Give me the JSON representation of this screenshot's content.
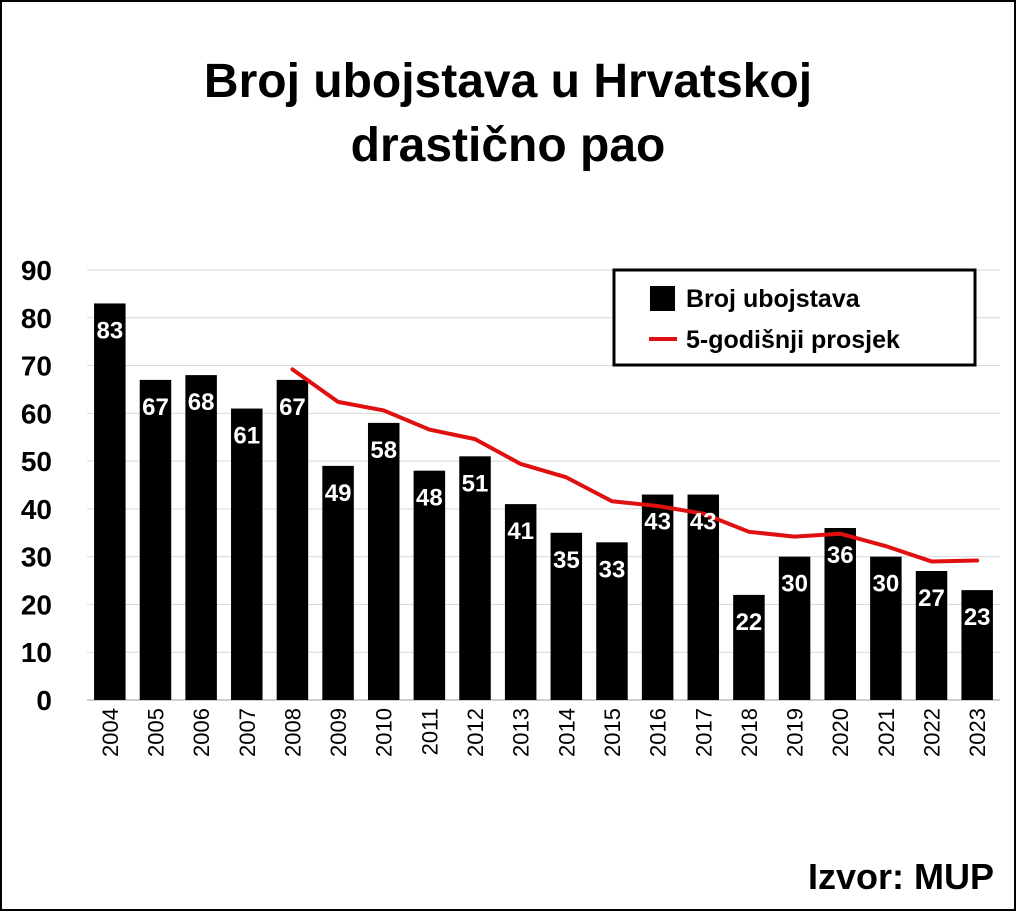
{
  "chart_data": {
    "type": "bar",
    "title_line1": "Broj ubojstava u Hrvatskoj",
    "title_line2": "drastično pao",
    "categories": [
      "2004",
      "2005",
      "2006",
      "2007",
      "2008",
      "2009",
      "2010",
      "2011",
      "2012",
      "2013",
      "2014",
      "2015",
      "2016",
      "2017",
      "2018",
      "2019",
      "2020",
      "2021",
      "2022",
      "2023"
    ],
    "series": [
      {
        "name": "Broj ubojstava",
        "type": "bar",
        "color": "#000000",
        "values": [
          83,
          67,
          68,
          61,
          67,
          49,
          58,
          48,
          51,
          41,
          35,
          33,
          43,
          43,
          22,
          30,
          36,
          30,
          27,
          23
        ]
      },
      {
        "name": "5-godišnji prosjek",
        "type": "line",
        "color": "#e01010",
        "values": [
          null,
          null,
          null,
          null,
          69.2,
          62.4,
          60.6,
          56.6,
          54.6,
          49.4,
          46.6,
          41.6,
          40.6,
          39.0,
          35.2,
          34.2,
          34.8,
          32.2,
          29.0,
          29.2
        ]
      }
    ],
    "ylim": [
      0,
      90
    ],
    "yticks": [
      0,
      10,
      20,
      30,
      40,
      50,
      60,
      70,
      80,
      90
    ],
    "grid": true,
    "legend_position": "top-right"
  },
  "source": "Izvor: MUP"
}
